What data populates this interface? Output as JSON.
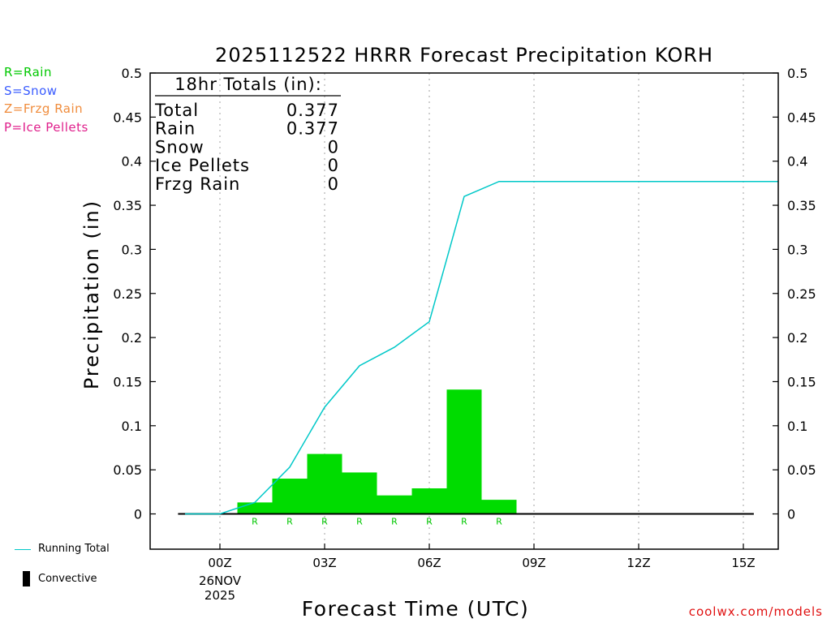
{
  "chart_data": {
    "type": "bar",
    "title": "2025112522 HRRR Forecast Precipitation KORH",
    "xlabel": "Forecast Time (UTC)",
    "ylabel": "Precipitation (in)",
    "ylim": [
      -0.04,
      0.5
    ],
    "xlim": [
      -2.0,
      16.0
    ],
    "yticks": [
      "0",
      "0.05",
      "0.1",
      "0.15",
      "0.2",
      "0.25",
      "0.3",
      "0.35",
      "0.4",
      "0.45",
      "0.5"
    ],
    "ytick_values": [
      0,
      0.05,
      0.1,
      0.15,
      0.2,
      0.25,
      0.3,
      0.35,
      0.4,
      0.45,
      0.5
    ],
    "xticks": [
      {
        "hour": 0,
        "label": "00Z",
        "label2": "26NOV",
        "label3": "2025"
      },
      {
        "hour": 3,
        "label": "03Z"
      },
      {
        "hour": 6,
        "label": "06Z"
      },
      {
        "hour": 9,
        "label": "09Z"
      },
      {
        "hour": 12,
        "label": "12Z"
      },
      {
        "hour": 15,
        "label": "15Z"
      }
    ],
    "bars": [
      {
        "hour": 1,
        "value": 0.013,
        "type": "R"
      },
      {
        "hour": 2,
        "value": 0.04,
        "type": "R"
      },
      {
        "hour": 3,
        "value": 0.068,
        "type": "R"
      },
      {
        "hour": 4,
        "value": 0.047,
        "type": "R"
      },
      {
        "hour": 5,
        "value": 0.021,
        "type": "R"
      },
      {
        "hour": 6,
        "value": 0.029,
        "type": "R"
      },
      {
        "hour": 7,
        "value": 0.141,
        "type": "R"
      },
      {
        "hour": 8,
        "value": 0.016,
        "type": "R"
      }
    ],
    "running_total": {
      "name": "Running Total",
      "x": [
        -1,
        0,
        1,
        2,
        3,
        4,
        5,
        6,
        7,
        8,
        9,
        10,
        11,
        12,
        13,
        14,
        15,
        16
      ],
      "y": [
        0,
        0,
        0.013,
        0.053,
        0.121,
        0.168,
        0.189,
        0.218,
        0.36,
        0.377,
        0.377,
        0.377,
        0.377,
        0.377,
        0.377,
        0.377,
        0.377,
        0.377
      ]
    },
    "baseline_range": [
      -1.2,
      15.3
    ],
    "totals_box": {
      "heading": "18hr Totals (in):",
      "rows": [
        {
          "label": "Total",
          "value": "0.377"
        },
        {
          "label": "Rain",
          "value": "0.377"
        },
        {
          "label": "Snow",
          "value": "0"
        },
        {
          "label": "Ice Pellets",
          "value": "0"
        },
        {
          "label": "Frzg Rain",
          "value": "0"
        }
      ]
    },
    "legend": [
      {
        "text": "R=Rain",
        "color": "#00c800"
      },
      {
        "text": "S=Snow",
        "color": "#3a5cff"
      },
      {
        "text": "Z=Frzg Rain",
        "color": "#f08c3c"
      },
      {
        "text": "P=Ice Pellets",
        "color": "#e0208c"
      }
    ],
    "bottom_legend": {
      "running_total": "Running Total",
      "convective": "Convective"
    },
    "colors": {
      "rain": "#00dc00",
      "line": "#00c8c8",
      "grid": "#a0a0a0"
    }
  },
  "credit": "coolwx.com/models"
}
